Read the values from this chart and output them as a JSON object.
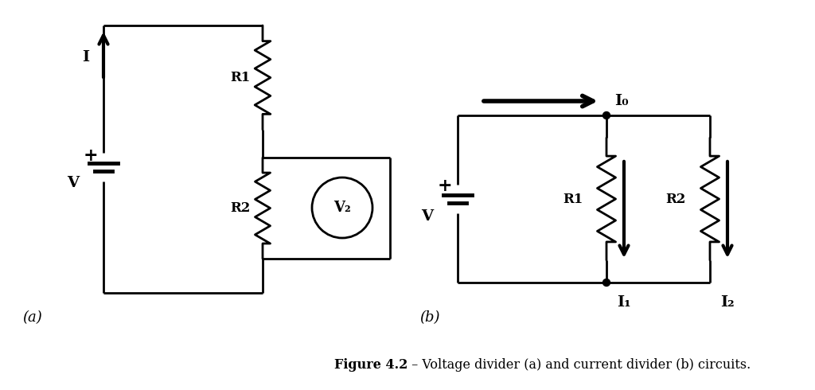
{
  "fig_width": 10.24,
  "fig_height": 4.9,
  "bg": "#ffffff",
  "lc": "#000000",
  "lw": 2.0,
  "cap_bold": "Figure 4.2",
  "cap_normal": " – Voltage divider (a) and current divider (b) circuits.",
  "a_label": "(a)",
  "b_label": "(b)",
  "I_label": "I",
  "V_label": "V",
  "R1_label": "R1",
  "R2_label": "R2",
  "V2_label": "V₂",
  "I0_label": "I₀",
  "I1_label": "I₁",
  "I2_label": "I₂",
  "plus": "+"
}
